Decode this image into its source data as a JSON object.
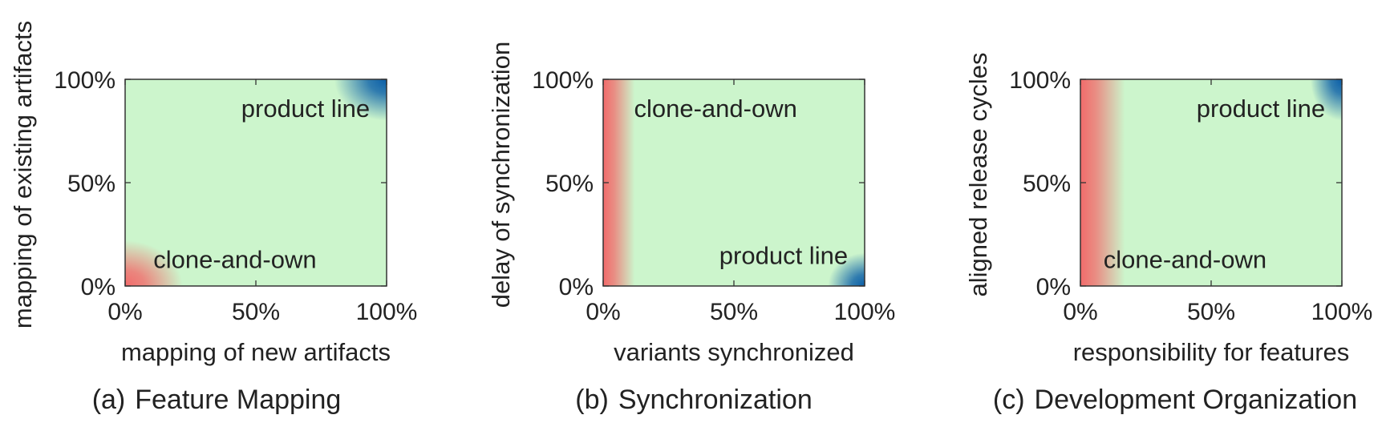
{
  "colors": {
    "background_region": "#ccf5cc",
    "clone_and_own": "#f26b6b",
    "product_line": "#0a5ea8",
    "axis": "#333333"
  },
  "chart_data": [
    {
      "type": "heatmap",
      "caption_letter": "(a)",
      "caption": "Feature Mapping",
      "xlabel": "mapping of new artifacts",
      "ylabel": "mapping of existing artifacts",
      "xlim": [
        0,
        100
      ],
      "ylim": [
        0,
        100
      ],
      "x_ticks": [
        "0%",
        "50%",
        "100%"
      ],
      "y_ticks": [
        "0%",
        "50%",
        "100%"
      ],
      "regions": [
        {
          "label": "clone-and-own",
          "kind": "clone_and_own",
          "shape": "corner",
          "cx": 0,
          "cy": 0,
          "rx": 22,
          "ry": 22,
          "label_x": 42,
          "label_y": 13
        },
        {
          "label": "product line",
          "kind": "product_line",
          "shape": "corner",
          "cx": 100,
          "cy": 100,
          "rx": 20,
          "ry": 20,
          "label_x": 69,
          "label_y": 86
        }
      ]
    },
    {
      "type": "heatmap",
      "caption_letter": "(b)",
      "caption": "Synchronization",
      "xlabel": "variants synchronized",
      "ylabel": "delay of synchronization",
      "xlim": [
        0,
        100
      ],
      "ylim": [
        0,
        100
      ],
      "x_ticks": [
        "0%",
        "50%",
        "100%"
      ],
      "y_ticks": [
        "0%",
        "50%",
        "100%"
      ],
      "regions": [
        {
          "label": "clone-and-own",
          "kind": "clone_and_own",
          "shape": "strip",
          "x0": 0,
          "x1": 12,
          "label_x": 43,
          "label_y": 86
        },
        {
          "label": "product line",
          "kind": "product_line",
          "shape": "corner",
          "cx": 100,
          "cy": 0,
          "rx": 14,
          "ry": 16,
          "label_x": 69,
          "label_y": 15
        }
      ]
    },
    {
      "type": "heatmap",
      "caption_letter": "(c)",
      "caption": "Development Organization",
      "xlabel": "responsibility for features",
      "ylabel": "aligned release cycles",
      "xlim": [
        0,
        100
      ],
      "ylim": [
        0,
        100
      ],
      "x_ticks": [
        "0%",
        "50%",
        "100%"
      ],
      "y_ticks": [
        "0%",
        "50%",
        "100%"
      ],
      "regions": [
        {
          "label": "clone-and-own",
          "kind": "clone_and_own",
          "shape": "strip",
          "x0": 0,
          "x1": 17,
          "label_x": 40,
          "label_y": 13
        },
        {
          "label": "product line",
          "kind": "product_line",
          "shape": "corner",
          "cx": 100,
          "cy": 100,
          "rx": 12,
          "ry": 20,
          "label_x": 69,
          "label_y": 86
        }
      ]
    }
  ]
}
